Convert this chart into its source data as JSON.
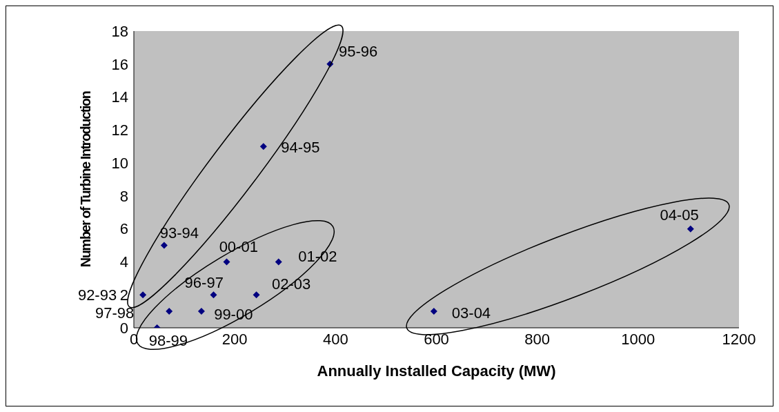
{
  "chart_data": {
    "type": "scatter",
    "xlabel": "Annually Installed Capacity (MW)",
    "ylabel": "Number of Turbine Introduction",
    "x": [
      389,
      257,
      60,
      184,
      287,
      18,
      158,
      243,
      70,
      134,
      46,
      595,
      1104
    ],
    "series": [
      {
        "color": "#000080",
        "values": [
          16,
          11,
          5,
          4,
          4,
          2,
          2,
          2,
          1,
          1,
          0,
          1,
          6
        ]
      }
    ],
    "xlim": [
      0,
      1200
    ],
    "xticks": [
      0,
      200,
      400,
      600,
      800,
      1000,
      1200
    ],
    "ylim": [
      0,
      18
    ],
    "yticks": [
      0,
      2,
      4,
      6,
      8,
      10,
      12,
      14,
      16,
      18
    ],
    "grid": false,
    "legend": false,
    "marker": "diamond",
    "annotations": [
      {
        "text": "95-96",
        "x": 389,
        "y": 16
      },
      {
        "text": "94-95",
        "x": 257,
        "y": 11
      },
      {
        "text": "93-94",
        "x": 60,
        "y": 5
      },
      {
        "text": "00-01",
        "x": 184,
        "y": 4
      },
      {
        "text": "01-02",
        "x": 287,
        "y": 4
      },
      {
        "text": "92-93",
        "x": 18,
        "y": 2
      },
      {
        "text": "96-97",
        "x": 158,
        "y": 2
      },
      {
        "text": "02-03",
        "x": 243,
        "y": 2
      },
      {
        "text": "97-98",
        "x": 70,
        "y": 1
      },
      {
        "text": "99-00",
        "x": 134,
        "y": 1
      },
      {
        "text": "98-99",
        "x": 46,
        "y": 0
      },
      {
        "text": "03-04",
        "x": 595,
        "y": 1
      },
      {
        "text": "04-05",
        "x": 1104,
        "y": 6
      }
    ]
  }
}
